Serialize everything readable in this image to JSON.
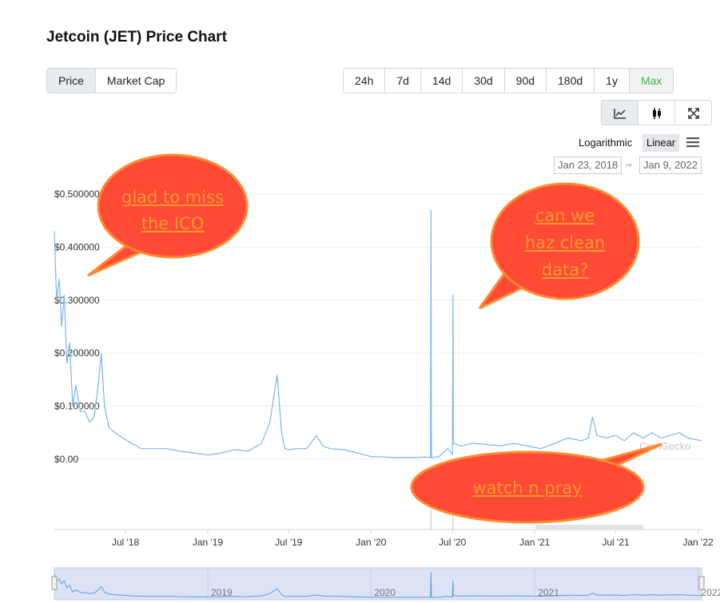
{
  "page_title": "Jetcoin (JET) Price Chart",
  "type_tabs": [
    {
      "label": "Price",
      "active": true
    },
    {
      "label": "Market Cap",
      "active": false
    }
  ],
  "range_tabs": [
    {
      "label": "24h",
      "active": false
    },
    {
      "label": "7d",
      "active": false
    },
    {
      "label": "14d",
      "active": false
    },
    {
      "label": "30d",
      "active": false
    },
    {
      "label": "90d",
      "active": false
    },
    {
      "label": "180d",
      "active": false
    },
    {
      "label": "1y",
      "active": false
    },
    {
      "label": "Max",
      "active": true
    }
  ],
  "view_buttons": [
    {
      "icon": "line-chart-icon",
      "active": true
    },
    {
      "icon": "candlestick-icon",
      "active": false
    },
    {
      "icon": "fullscreen-icon",
      "active": false
    }
  ],
  "scale": {
    "logarithmic_label": "Logarithmic",
    "linear_label": "Linear",
    "selected": "Linear"
  },
  "date_range": {
    "from": "Jan 23, 2018",
    "to": "Jan 9, 2022",
    "arrow": "→"
  },
  "watermark": "CoinGecko",
  "annotations": [
    {
      "text_lines": [
        "glad to miss",
        "the ICO"
      ]
    },
    {
      "text_lines": [
        "can we",
        "haz clean",
        "data?"
      ]
    },
    {
      "text_lines": [
        "watch n pray"
      ]
    }
  ],
  "colors": {
    "line": "#7cb5ec",
    "bubble_fill": "#ff4a36",
    "bubble_stroke": "#ff8a30",
    "bubble_text": "#ff9a2e",
    "active_green": "#3fb543"
  },
  "chart_data": {
    "type": "line",
    "title": "",
    "xlabel": "",
    "ylabel": "",
    "y_ticks": [
      "$0.00",
      "$0.100000",
      "$0.200000",
      "$0.300000",
      "$0.400000",
      "$0.500000"
    ],
    "y_tick_values": [
      0,
      0.1,
      0.2,
      0.3,
      0.4,
      0.5
    ],
    "ylim": [
      0,
      0.5
    ],
    "x_ticks": [
      {
        "label": "Jul '18",
        "date": "2018-07-01"
      },
      {
        "label": "Jan '19",
        "date": "2019-01-01"
      },
      {
        "label": "Jul '19",
        "date": "2019-07-01"
      },
      {
        "label": "Jan '20",
        "date": "2020-01-01"
      },
      {
        "label": "Jul '20",
        "date": "2020-07-01"
      },
      {
        "label": "Jan '21",
        "date": "2021-01-01"
      },
      {
        "label": "Jul '21",
        "date": "2021-07-01"
      },
      {
        "label": "Jan '22",
        "date": "2022-01-01"
      }
    ],
    "xlim": [
      "2018-01-23",
      "2022-01-09"
    ],
    "grid": true,
    "legend": "none",
    "series": [
      {
        "x": [
          "2018-01-23",
          "2018-01-28",
          "2018-02-03",
          "2018-02-08",
          "2018-02-14",
          "2018-02-20",
          "2018-02-26",
          "2018-03-05",
          "2018-03-12",
          "2018-03-22",
          "2018-04-01",
          "2018-04-12",
          "2018-04-22",
          "2018-05-01",
          "2018-05-08",
          "2018-05-15",
          "2018-05-25",
          "2018-06-08",
          "2018-06-25",
          "2018-07-15",
          "2018-08-05",
          "2018-09-01",
          "2018-10-01",
          "2018-11-01",
          "2018-12-01",
          "2019-01-01",
          "2019-02-01",
          "2019-03-01",
          "2019-04-01",
          "2019-05-01",
          "2019-05-20",
          "2019-06-05",
          "2019-06-15",
          "2019-06-22",
          "2019-07-01",
          "2019-07-20",
          "2019-08-10",
          "2019-09-01",
          "2019-09-15",
          "2019-10-01",
          "2019-11-01",
          "2019-12-01",
          "2020-01-01",
          "2020-02-01",
          "2020-03-01",
          "2020-04-01",
          "2020-05-01",
          "2020-05-13",
          "2020-05-14",
          "2020-05-15",
          "2020-06-01",
          "2020-06-20",
          "2020-07-01",
          "2020-07-02",
          "2020-07-03",
          "2020-07-20",
          "2020-08-15",
          "2020-09-15",
          "2020-10-15",
          "2020-11-15",
          "2020-12-15",
          "2021-01-15",
          "2021-02-15",
          "2021-03-15",
          "2021-04-15",
          "2021-05-01",
          "2021-05-10",
          "2021-05-20",
          "2021-06-10",
          "2021-07-01",
          "2021-07-20",
          "2021-08-10",
          "2021-09-01",
          "2021-09-20",
          "2021-10-10",
          "2021-11-01",
          "2021-11-20",
          "2021-12-10",
          "2022-01-09"
        ],
        "y": [
          0.43,
          0.3,
          0.34,
          0.25,
          0.31,
          0.18,
          0.22,
          0.1,
          0.14,
          0.09,
          0.09,
          0.07,
          0.08,
          0.14,
          0.2,
          0.1,
          0.06,
          0.05,
          0.04,
          0.03,
          0.02,
          0.02,
          0.02,
          0.015,
          0.012,
          0.008,
          0.012,
          0.018,
          0.015,
          0.03,
          0.07,
          0.16,
          0.05,
          0.02,
          0.018,
          0.02,
          0.02,
          0.045,
          0.025,
          0.02,
          0.018,
          0.012,
          0.005,
          0.004,
          0.003,
          0.003,
          0.004,
          0.003,
          0.47,
          0.003,
          0.005,
          0.02,
          0.01,
          0.31,
          0.03,
          0.025,
          0.03,
          0.028,
          0.025,
          0.03,
          0.025,
          0.02,
          0.03,
          0.04,
          0.035,
          0.04,
          0.08,
          0.045,
          0.04,
          0.045,
          0.035,
          0.05,
          0.04,
          0.05,
          0.04,
          0.045,
          0.05,
          0.04,
          0.035
        ]
      }
    ]
  },
  "navigator": {
    "year_labels": [
      "2019",
      "2020",
      "2021",
      "2022"
    ]
  }
}
